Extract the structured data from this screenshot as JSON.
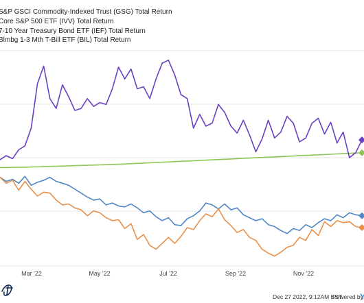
{
  "chart_data": {
    "type": "line",
    "legend_position": "top-left",
    "grid": true,
    "x_tick_labels": [
      "Mar '22",
      "May '22",
      "Jul '22",
      "Sep '22",
      "Nov '22"
    ],
    "series": [
      {
        "name": "S&P GSCI Commodity-Indexed Trust (GSG) Total Return",
        "color": "#6a3fc1",
        "values": [
          0.8,
          1.2,
          0.9,
          1.8,
          2.2,
          4.0,
          8.5,
          10.3,
          7.0,
          6.0,
          8.4,
          7.2,
          5.8,
          6.0,
          7.0,
          6.2,
          6.6,
          6.4,
          8.0,
          10.2,
          9.0,
          10.0,
          8.0,
          8.2,
          7.0,
          9.0,
          10.6,
          10.9,
          9.4,
          7.4,
          7.0,
          4.0,
          5.4,
          4.2,
          4.5,
          6.4,
          5.6,
          4.2,
          3.5,
          4.8,
          3.3,
          1.6,
          2.9,
          4.8,
          3.0,
          3.6,
          5.2,
          4.5,
          2.6,
          3.0,
          4.5,
          5.0,
          3.4,
          4.6,
          2.5,
          3.6,
          1.0,
          1.5,
          2.8
        ]
      },
      {
        "name": "Core S&P 500 ETF (IVV) Total Return",
        "color": "#4f86c6",
        "values": [
          -1.0,
          -1.4,
          -1.2,
          -1.6,
          -0.9,
          -1.8,
          -1.5,
          -1.3,
          -1.0,
          -1.4,
          -1.6,
          -1.8,
          -2.2,
          -2.6,
          -3.0,
          -3.3,
          -3.2,
          -3.8,
          -3.6,
          -3.9,
          -4.0,
          -3.7,
          -4.1,
          -4.6,
          -4.4,
          -5.0,
          -5.4,
          -5.1,
          -5.8,
          -5.9,
          -5.2,
          -4.9,
          -4.4,
          -3.6,
          -3.8,
          -4.2,
          -3.7,
          -4.3,
          -4.1,
          -4.8,
          -5.1,
          -5.4,
          -5.2,
          -5.8,
          -6.0,
          -6.4,
          -6.7,
          -6.2,
          -6.4,
          -5.8,
          -6.1,
          -5.6,
          -5.2,
          -5.4,
          -4.8,
          -5.1,
          -4.6,
          -4.8,
          -4.9
        ]
      },
      {
        "name": "7-10 Year Treasury Bond ETF (IEF) Total Return",
        "color": "#e8904a",
        "values": [
          -1.0,
          -1.6,
          -1.3,
          -2.3,
          -1.4,
          -2.2,
          -2.9,
          -2.5,
          -2.6,
          -3.3,
          -3.8,
          -3.7,
          -4.1,
          -4.3,
          -4.9,
          -4.4,
          -4.6,
          -5.1,
          -5.4,
          -5.3,
          -6.2,
          -5.7,
          -7.3,
          -6.8,
          -7.9,
          -8.3,
          -7.7,
          -7.1,
          -7.7,
          -7.0,
          -6.1,
          -6.3,
          -5.4,
          -4.7,
          -5.0,
          -4.2,
          -5.3,
          -5.9,
          -6.6,
          -6.3,
          -7.1,
          -7.4,
          -8.3,
          -8.7,
          -9.0,
          -8.6,
          -8.1,
          -7.9,
          -7.1,
          -7.4,
          -6.3,
          -6.9,
          -5.5,
          -6.0,
          -5.4,
          -5.6,
          -5.5,
          -6.0,
          -6.1
        ]
      },
      {
        "name": "Blmbg 1-3 Mth T-Bill ETF (BIL) Total Return",
        "color": "#8dc454",
        "values": [
          0.0,
          0.0,
          0.01,
          0.02,
          0.03,
          0.05,
          0.07,
          0.09,
          0.11,
          0.13,
          0.15,
          0.17,
          0.19,
          0.21,
          0.23,
          0.25,
          0.27,
          0.29,
          0.31,
          0.33,
          0.36,
          0.39,
          0.42,
          0.45,
          0.48,
          0.51,
          0.54,
          0.57,
          0.6,
          0.63,
          0.66,
          0.69,
          0.72,
          0.75,
          0.78,
          0.81,
          0.84,
          0.87,
          0.9,
          0.93,
          0.96,
          0.99,
          1.02,
          1.05,
          1.08,
          1.11,
          1.14,
          1.17,
          1.2,
          1.23,
          1.26,
          1.29,
          1.32,
          1.35,
          1.38,
          1.41,
          1.44,
          1.47,
          1.5
        ]
      }
    ],
    "y_value_range": [
      -10,
      12
    ]
  },
  "footer": {
    "timestamp": "Dec 27 2022, 9:12AM EST.",
    "powered_by": "Powered by",
    "brand_glyph": "Y"
  },
  "colors": {
    "brand": "#4a90d9",
    "grid": "#e6e6e6"
  }
}
